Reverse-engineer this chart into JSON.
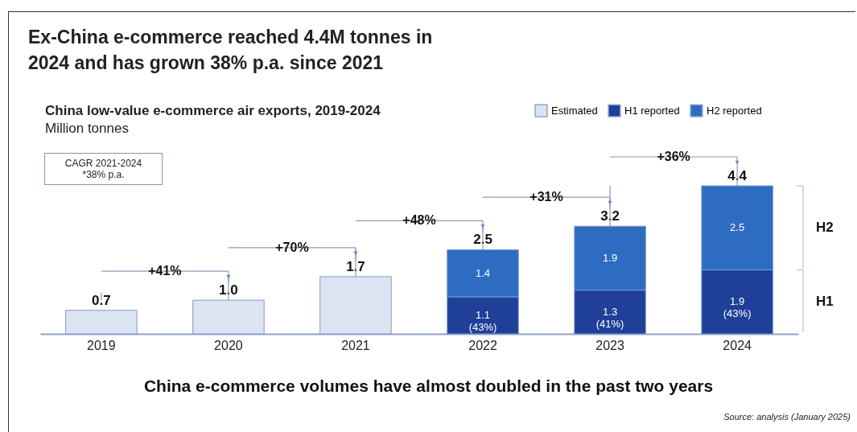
{
  "chart_data": {
    "type": "bar",
    "stacked": true,
    "title": "Ex-China e-commerce reached 4.4M tonnes in 2024 and has grown 38% p.a. since 2021",
    "subtitle": "China low-value e-commerce air exports, 2019-2024",
    "categories": [
      "2019",
      "2020",
      "2021",
      "2022",
      "2023",
      "2024"
    ],
    "series": [
      {
        "name": "Estimated",
        "color": "#dce4f1",
        "values": [
          0.7,
          1.0,
          1.7,
          null,
          null,
          null
        ]
      },
      {
        "name": "H1 reported",
        "color": "#1f3f98",
        "values": [
          null,
          null,
          null,
          1.1,
          1.3,
          1.9
        ],
        "value_labels": [
          null,
          null,
          null,
          "1.1\n(43%)",
          "1.3\n(41%)",
          "1.9\n(43%)"
        ]
      },
      {
        "name": "H2 reported",
        "color": "#2e6cc1",
        "values": [
          null,
          null,
          null,
          1.4,
          1.9,
          2.5
        ],
        "value_labels": [
          null,
          null,
          null,
          "1.4",
          "1.9",
          "2.5"
        ]
      }
    ],
    "totals": [
      "0.7",
      "1.0",
      "1.7",
      "2.5",
      "3.2",
      "4.4"
    ],
    "annotations": [
      "+41%",
      "+70%",
      "+48%",
      "+31%",
      "+36%",
      "Million tonnes",
      "CAGR 2021-2024\n*38% p.a.",
      "H1",
      "H2",
      "China e-commerce volumes have almost doubled in the past two years",
      "Source: analysis (January 2025)"
    ],
    "legend": "top right",
    "tick_labels": "x",
    "grid": false
  }
}
